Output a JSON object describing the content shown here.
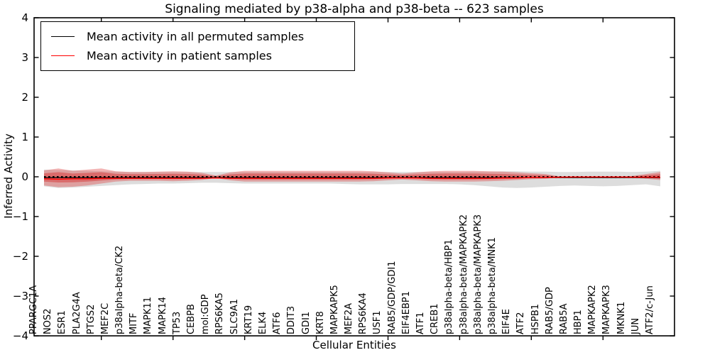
{
  "chart_data": {
    "type": "line",
    "title": "Signaling mediated by p38-alpha and p38-beta -- 623 samples",
    "xlabel": "Cellular Entities",
    "ylabel": "Inferred Activity",
    "ylim": [
      -4,
      4
    ],
    "yticks": [
      4,
      3,
      2,
      1,
      0,
      -1,
      -2,
      -3,
      -4
    ],
    "grid": false,
    "legend_position": "upper left",
    "categories": [
      "PPARGC1A",
      "NOS2",
      "ESR1",
      "PLA2G4A",
      "PTGS2",
      "MEF2C",
      "p38alpha-beta/CK2",
      "MITF",
      "MAPK11",
      "MAPK14",
      "TP53",
      "CEBPB",
      "mol:GDP",
      "RPS6KA5",
      "SLC9A1",
      "KRT19",
      "ELK4",
      "ATF6",
      "DDIT3",
      "GDI1",
      "KRT8",
      "MAPKAPK5",
      "MEF2A",
      "RPS6KA4",
      "USF1",
      "RAB5/GDP/GDI1",
      "EIF4EBP1",
      "ATF1",
      "CREB1",
      "p38alpha-beta/HBP1",
      "p38alpha-beta/MAPKAPK2",
      "p38alpha-beta/MAPKAPK3",
      "p38alpha-beta/MNK1",
      "EIF4E",
      "ATF2",
      "HSPB1",
      "RAB5/GDP",
      "RAB5A",
      "HBP1",
      "MAPKAPK2",
      "MAPKAPK3",
      "MKNK1",
      "JUN",
      "ATF2/c-Jun"
    ],
    "series": [
      {
        "name": "Mean activity in all permuted samples",
        "color": "#000000",
        "values": [
          -0.02,
          -0.02,
          -0.02,
          -0.02,
          -0.02,
          -0.02,
          -0.02,
          -0.02,
          -0.02,
          -0.02,
          -0.02,
          -0.02,
          -0.02,
          -0.02,
          -0.02,
          -0.02,
          -0.02,
          -0.02,
          -0.02,
          -0.02,
          -0.02,
          -0.02,
          -0.02,
          -0.02,
          -0.02,
          -0.02,
          -0.02,
          -0.02,
          -0.02,
          -0.02,
          -0.02,
          -0.02,
          -0.02,
          -0.02,
          -0.02,
          -0.02,
          -0.02,
          -0.02,
          -0.02,
          -0.02,
          -0.02,
          -0.02,
          -0.02,
          -0.02
        ]
      },
      {
        "name": "Mean activity in patient samples",
        "color": "#ff0000",
        "values": [
          -0.05,
          -0.06,
          -0.05,
          -0.05,
          -0.04,
          -0.04,
          -0.04,
          -0.04,
          -0.04,
          -0.04,
          -0.04,
          -0.04,
          -0.03,
          -0.04,
          -0.04,
          -0.04,
          -0.04,
          -0.04,
          -0.04,
          -0.04,
          -0.04,
          -0.04,
          -0.04,
          -0.04,
          -0.03,
          -0.03,
          -0.03,
          -0.04,
          -0.04,
          -0.04,
          -0.04,
          -0.04,
          -0.03,
          -0.03,
          -0.02,
          -0.02,
          -0.01,
          -0.005,
          -0.005,
          -0.005,
          -0.005,
          -0.01,
          -0.01,
          -0.01
        ]
      }
    ],
    "bands": [
      {
        "name": "permuted-samples-range",
        "color": "#777777",
        "opacity": 0.25,
        "upper": [
          0.18,
          0.17,
          0.16,
          0.15,
          0.14,
          0.13,
          0.12,
          0.12,
          0.12,
          0.12,
          0.12,
          0.12,
          0.12,
          0.12,
          0.12,
          0.12,
          0.12,
          0.12,
          0.12,
          0.12,
          0.12,
          0.12,
          0.12,
          0.12,
          0.12,
          0.12,
          0.12,
          0.12,
          0.12,
          0.12,
          0.13,
          0.13,
          0.14,
          0.14,
          0.13,
          0.13,
          0.12,
          0.12,
          0.13,
          0.13,
          0.13,
          0.12,
          0.13,
          0.15
        ],
        "lower": [
          -0.24,
          -0.28,
          -0.27,
          -0.25,
          -0.23,
          -0.21,
          -0.19,
          -0.18,
          -0.17,
          -0.17,
          -0.16,
          -0.15,
          -0.15,
          -0.16,
          -0.17,
          -0.17,
          -0.17,
          -0.17,
          -0.17,
          -0.17,
          -0.17,
          -0.18,
          -0.19,
          -0.19,
          -0.19,
          -0.18,
          -0.18,
          -0.18,
          -0.18,
          -0.19,
          -0.21,
          -0.24,
          -0.27,
          -0.28,
          -0.27,
          -0.25,
          -0.23,
          -0.22,
          -0.23,
          -0.24,
          -0.23,
          -0.21,
          -0.19,
          -0.24
        ]
      },
      {
        "name": "patient-samples-range",
        "color": "#e03c3c",
        "opacity": 0.38,
        "upper": [
          0.16,
          0.21,
          0.15,
          0.18,
          0.21,
          0.14,
          0.12,
          0.12,
          0.13,
          0.14,
          0.13,
          0.1,
          0.03,
          0.11,
          0.15,
          0.15,
          0.15,
          0.15,
          0.15,
          0.15,
          0.15,
          0.15,
          0.15,
          0.14,
          0.11,
          0.08,
          0.11,
          0.14,
          0.15,
          0.15,
          0.15,
          0.14,
          0.13,
          0.11,
          0.09,
          0.07,
          0.01,
          0.01,
          0.01,
          0.01,
          0.01,
          0.02,
          0.07,
          0.12
        ],
        "lower": [
          -0.22,
          -0.26,
          -0.25,
          -0.22,
          -0.17,
          -0.12,
          -0.1,
          -0.1,
          -0.1,
          -0.11,
          -0.1,
          -0.08,
          -0.03,
          -0.09,
          -0.12,
          -0.12,
          -0.12,
          -0.12,
          -0.12,
          -0.12,
          -0.12,
          -0.12,
          -0.12,
          -0.11,
          -0.09,
          -0.07,
          -0.09,
          -0.11,
          -0.12,
          -0.12,
          -0.12,
          -0.11,
          -0.1,
          -0.08,
          -0.06,
          -0.05,
          -0.01,
          -0.01,
          -0.01,
          -0.01,
          -0.01,
          -0.02,
          -0.05,
          -0.08
        ]
      }
    ]
  }
}
